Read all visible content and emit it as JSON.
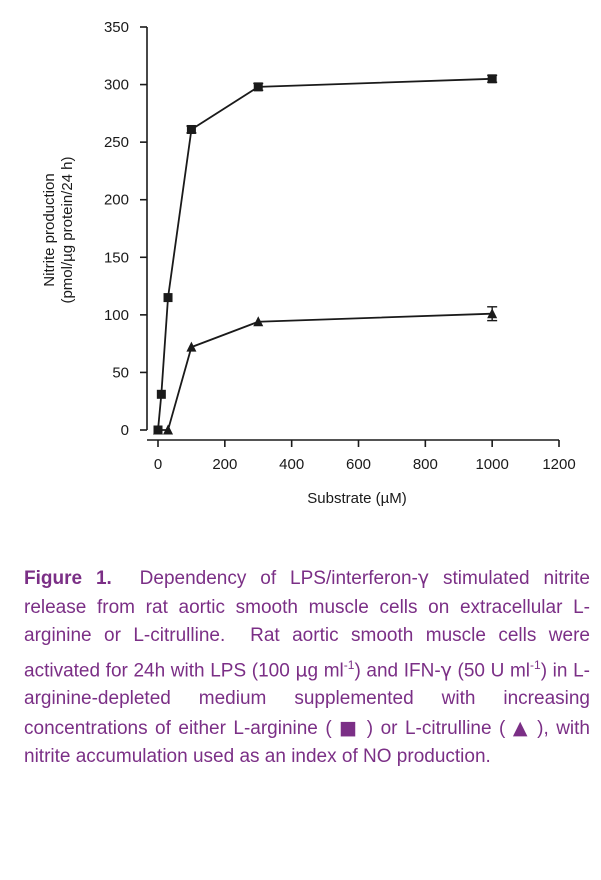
{
  "chart_data": {
    "type": "line",
    "title": "",
    "xlabel": "Substrate (µM)",
    "ylabel_line1": "Nitrite production",
    "ylabel_line2": "(pmol/µg protein/24 h)",
    "xlim": [
      0,
      1200
    ],
    "ylim": [
      0,
      350
    ],
    "xticks": [
      "0",
      "200",
      "400",
      "600",
      "800",
      "1000",
      "1200"
    ],
    "yticks": [
      "0",
      "50",
      "100",
      "150",
      "200",
      "250",
      "300",
      "350"
    ],
    "grid": false,
    "legend": "none",
    "series": [
      {
        "marker": "square",
        "x": [
          0,
          10,
          30,
          100,
          300,
          1000
        ],
        "y": [
          0,
          31,
          115,
          261,
          298,
          305
        ],
        "err": [
          0,
          0,
          0,
          3,
          3,
          3
        ]
      },
      {
        "marker": "triangle",
        "x": [
          0,
          30,
          100,
          300,
          1000
        ],
        "y": [
          0,
          0,
          72,
          94,
          101
        ],
        "err": [
          0,
          0,
          0,
          0,
          6
        ]
      }
    ]
  },
  "caption": {
    "label": "Figure 1.",
    "text_part1": "Dependency of LPS/interferon-",
    "gamma": "γ",
    "text_part2": " stimulated nitrite release from rat aortic smooth muscle cells on extracellular L-arginine or L-citrulline.  Rat aortic smooth muscle cells were activated for 24h with LPS (100 ",
    "mu": "µ",
    "text_part3": "g ml",
    "sup1": "-1",
    "text_part4": ") and IFN-",
    "gamma2": "γ",
    "text_part5": " (50 U ml",
    "sup2": "-1",
    "text_part6": ") in L-arginine-depleted medium supplemented with increasing concentrations of either L-arginine ( ",
    "square_symbol": "■",
    "text_part7": " ) or L-citrulline ( ",
    "triangle_symbol": "▲",
    "text_part8": " ), with nitrite accumulation used as an index of NO production."
  },
  "colors": {
    "caption": "#7b2f86",
    "axis": "#1a1a1a",
    "series": "#1a1a1a"
  }
}
